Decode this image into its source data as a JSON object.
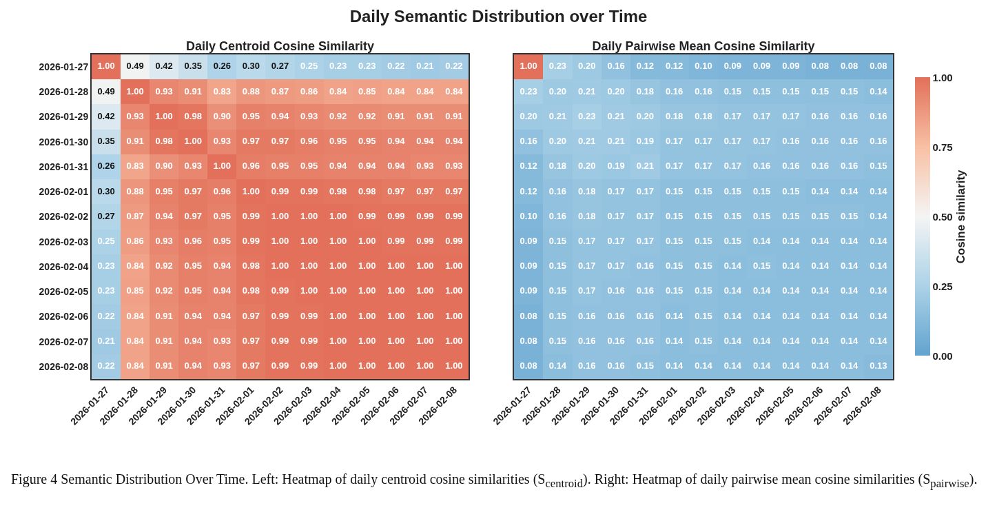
{
  "chart_data": [
    {
      "type": "heatmap",
      "title": "Daily Centroid Cosine Similarity",
      "annotations": [
        "Daily Semantic Distribution over Time",
        "Figure 4 Semantic Distribution Over Time. Left: Heatmap of daily centroid cosine similarities (S$_{centroid}$). Right: Heatmap of daily pairwise mean cosine similarities (S$_{pairwise}$)."
      ],
      "categories": [
        "2026-01-27",
        "2026-01-28",
        "2026-01-29",
        "2026-01-30",
        "2026-01-31",
        "2026-02-01",
        "2026-02-02",
        "2026-02-03",
        "2026-02-04",
        "2026-02-05",
        "2026-02-06",
        "2026-02-07",
        "2026-02-08"
      ],
      "y_categories": [
        "2026-01-27",
        "2026-01-28",
        "2026-01-29",
        "2026-01-30",
        "2026-01-31",
        "2026-02-01",
        "2026-02-02",
        "2026-02-03",
        "2026-02-04",
        "2026-02-05",
        "2026-02-06",
        "2026-02-07",
        "2026-02-08"
      ],
      "cells": [
        [
          1.0,
          0.49,
          0.42,
          0.35,
          0.26,
          0.3,
          0.27,
          0.25,
          0.23,
          0.23,
          0.22,
          0.21,
          0.22
        ],
        [
          0.49,
          1.0,
          0.93,
          0.91,
          0.83,
          0.88,
          0.87,
          0.86,
          0.84,
          0.85,
          0.84,
          0.84,
          0.84
        ],
        [
          0.42,
          0.93,
          1.0,
          0.98,
          0.9,
          0.95,
          0.94,
          0.93,
          0.92,
          0.92,
          0.91,
          0.91,
          0.91
        ],
        [
          0.35,
          0.91,
          0.98,
          1.0,
          0.93,
          0.97,
          0.97,
          0.96,
          0.95,
          0.95,
          0.94,
          0.94,
          0.94
        ],
        [
          0.26,
          0.83,
          0.9,
          0.93,
          1.0,
          0.96,
          0.95,
          0.95,
          0.94,
          0.94,
          0.94,
          0.93,
          0.93
        ],
        [
          0.3,
          0.88,
          0.95,
          0.97,
          0.96,
          1.0,
          0.99,
          0.99,
          0.98,
          0.98,
          0.97,
          0.97,
          0.97
        ],
        [
          0.27,
          0.87,
          0.94,
          0.97,
          0.95,
          0.99,
          1.0,
          1.0,
          1.0,
          0.99,
          0.99,
          0.99,
          0.99
        ],
        [
          0.25,
          0.86,
          0.93,
          0.96,
          0.95,
          0.99,
          1.0,
          1.0,
          1.0,
          1.0,
          0.99,
          0.99,
          0.99
        ],
        [
          0.23,
          0.84,
          0.92,
          0.95,
          0.94,
          0.98,
          1.0,
          1.0,
          1.0,
          1.0,
          1.0,
          1.0,
          1.0
        ],
        [
          0.23,
          0.85,
          0.92,
          0.95,
          0.94,
          0.98,
          0.99,
          1.0,
          1.0,
          1.0,
          1.0,
          1.0,
          1.0
        ],
        [
          0.22,
          0.84,
          0.91,
          0.94,
          0.94,
          0.97,
          0.99,
          0.99,
          1.0,
          1.0,
          1.0,
          1.0,
          1.0
        ],
        [
          0.21,
          0.84,
          0.91,
          0.94,
          0.93,
          0.97,
          0.99,
          0.99,
          1.0,
          1.0,
          1.0,
          1.0,
          1.0
        ],
        [
          0.22,
          0.84,
          0.91,
          0.94,
          0.93,
          0.97,
          0.99,
          0.99,
          1.0,
          1.0,
          1.0,
          1.0,
          1.0
        ]
      ],
      "cell_labels": [
        [
          "1.00",
          "0.49",
          "0.42",
          "0.35",
          "0.26",
          "0.30",
          "0.27",
          "0.25",
          "0.23",
          "0.23",
          "0.22",
          "0.21",
          "0.22"
        ],
        [
          "0.49",
          "1.00",
          "0.93",
          "0.91",
          "0.83",
          "0.88",
          "0.87",
          "0.86",
          "0.84",
          "0.85",
          "0.84",
          "0.84",
          "0.84"
        ],
        [
          "0.42",
          "0.93",
          "1.00",
          "0.98",
          "0.90",
          "0.95",
          "0.94",
          "0.93",
          "0.92",
          "0.92",
          "0.91",
          "0.91",
          "0.91"
        ],
        [
          "0.35",
          "0.91",
          "0.98",
          "1.00",
          "0.93",
          "0.97",
          "0.97",
          "0.96",
          "0.95",
          "0.95",
          "0.94",
          "0.94",
          "0.94"
        ],
        [
          "0.26",
          "0.83",
          "0.90",
          "0.93",
          "1.00",
          "0.96",
          "0.95",
          "0.95",
          "0.94",
          "0.94",
          "0.94",
          "0.93",
          "0.93"
        ],
        [
          "0.30",
          "0.88",
          "0.95",
          "0.97",
          "0.96",
          "1.00",
          "0.99",
          "0.99",
          "0.98",
          "0.98",
          "0.97",
          "0.97",
          "0.97"
        ],
        [
          "0.27",
          "0.87",
          "0.94",
          "0.97",
          "0.95",
          "0.99",
          "1.00",
          "1.00",
          "1.00",
          "0.99",
          "0.99",
          "0.99",
          "0.99"
        ],
        [
          "0.25",
          "0.86",
          "0.93",
          "0.96",
          "0.95",
          "0.99",
          "1.00",
          "1.00",
          "1.00",
          "1.00",
          "0.99",
          "0.99",
          "0.99"
        ],
        [
          "0.23",
          "0.84",
          "0.92",
          "0.95",
          "0.94",
          "0.98",
          "1.00",
          "1.00",
          "1.00",
          "1.00",
          "1.00",
          "1.00",
          "1.00"
        ],
        [
          "0.23",
          "0.85",
          "0.92",
          "0.95",
          "0.94",
          "0.98",
          "0.99",
          "1.00",
          "1.00",
          "1.00",
          "1.00",
          "1.00",
          "1.00"
        ],
        [
          "0.22",
          "0.84",
          "0.91",
          "0.94",
          "0.94",
          "0.97",
          "0.99",
          "0.99",
          "1.00",
          "1.00",
          "1.00",
          "1.00",
          "1.00"
        ],
        [
          "0.21",
          "0.84",
          "0.91",
          "0.94",
          "0.93",
          "0.97",
          "0.99",
          "0.99",
          "1.00",
          "1.00",
          "1.00",
          "1.00",
          "1.00"
        ],
        [
          "0.22",
          "0.84",
          "0.91",
          "0.94",
          "0.93",
          "0.97",
          "0.99",
          "0.99",
          "1.00",
          "1.00",
          "1.00",
          "1.00",
          "1.00"
        ]
      ]
    },
    {
      "type": "heatmap",
      "title": "Daily Pairwise Mean Cosine Similarity",
      "clabel": "Cosine similarity",
      "categories": [
        "2026-01-27",
        "2026-01-28",
        "2026-01-29",
        "2026-01-30",
        "2026-01-31",
        "2026-02-01",
        "2026-02-02",
        "2026-02-03",
        "2026-02-04",
        "2026-02-05",
        "2026-02-06",
        "2026-02-07",
        "2026-02-08"
      ],
      "y_categories": [
        "2026-01-27",
        "2026-01-28",
        "2026-01-29",
        "2026-01-30",
        "2026-01-31",
        "2026-02-01",
        "2026-02-02",
        "2026-02-03",
        "2026-02-04",
        "2026-02-05",
        "2026-02-06",
        "2026-02-07",
        "2026-02-08"
      ],
      "tick_labels": "x",
      "clim": [
        0,
        1
      ],
      "cticks": [
        {
          "value": 0,
          "label": "0.00"
        },
        {
          "value": 0.25,
          "label": "0.25"
        },
        {
          "value": 0.5,
          "label": "0.50"
        },
        {
          "value": 0.75,
          "label": "0.75"
        },
        {
          "value": 1,
          "label": "1.00"
        }
      ],
      "cells": [
        [
          1.0,
          0.23,
          0.2,
          0.16,
          0.12,
          0.12,
          0.1,
          0.09,
          0.09,
          0.09,
          0.08,
          0.08,
          0.08
        ],
        [
          0.23,
          0.2,
          0.21,
          0.2,
          0.18,
          0.16,
          0.16,
          0.15,
          0.15,
          0.15,
          0.15,
          0.15,
          0.14
        ],
        [
          0.2,
          0.21,
          0.23,
          0.21,
          0.2,
          0.18,
          0.18,
          0.17,
          0.17,
          0.17,
          0.16,
          0.16,
          0.16
        ],
        [
          0.16,
          0.2,
          0.21,
          0.21,
          0.19,
          0.17,
          0.17,
          0.17,
          0.17,
          0.16,
          0.16,
          0.16,
          0.16
        ],
        [
          0.12,
          0.18,
          0.2,
          0.19,
          0.21,
          0.17,
          0.17,
          0.17,
          0.16,
          0.16,
          0.16,
          0.16,
          0.15
        ],
        [
          0.12,
          0.16,
          0.18,
          0.17,
          0.17,
          0.15,
          0.15,
          0.15,
          0.15,
          0.15,
          0.14,
          0.14,
          0.14
        ],
        [
          0.1,
          0.16,
          0.18,
          0.17,
          0.17,
          0.15,
          0.15,
          0.15,
          0.15,
          0.15,
          0.15,
          0.15,
          0.14
        ],
        [
          0.09,
          0.15,
          0.17,
          0.17,
          0.17,
          0.15,
          0.15,
          0.15,
          0.14,
          0.14,
          0.14,
          0.14,
          0.14
        ],
        [
          0.09,
          0.15,
          0.17,
          0.17,
          0.16,
          0.15,
          0.15,
          0.14,
          0.15,
          0.14,
          0.14,
          0.14,
          0.14
        ],
        [
          0.09,
          0.15,
          0.17,
          0.16,
          0.16,
          0.15,
          0.15,
          0.14,
          0.14,
          0.14,
          0.14,
          0.14,
          0.14
        ],
        [
          0.08,
          0.15,
          0.16,
          0.16,
          0.16,
          0.14,
          0.15,
          0.14,
          0.14,
          0.14,
          0.14,
          0.14,
          0.14
        ],
        [
          0.08,
          0.15,
          0.16,
          0.16,
          0.16,
          0.14,
          0.15,
          0.14,
          0.14,
          0.14,
          0.14,
          0.14,
          0.14
        ],
        [
          0.08,
          0.14,
          0.16,
          0.16,
          0.15,
          0.14,
          0.14,
          0.14,
          0.14,
          0.14,
          0.14,
          0.14,
          0.13
        ]
      ],
      "cell_labels": [
        [
          "1.00",
          "0.23",
          "0.20",
          "0.16",
          "0.12",
          "0.12",
          "0.10",
          "0.09",
          "0.09",
          "0.09",
          "0.08",
          "0.08",
          "0.08"
        ],
        [
          "0.23",
          "0.20",
          "0.21",
          "0.20",
          "0.18",
          "0.16",
          "0.16",
          "0.15",
          "0.15",
          "0.15",
          "0.15",
          "0.15",
          "0.14"
        ],
        [
          "0.20",
          "0.21",
          "0.23",
          "0.21",
          "0.20",
          "0.18",
          "0.18",
          "0.17",
          "0.17",
          "0.17",
          "0.16",
          "0.16",
          "0.16"
        ],
        [
          "0.16",
          "0.20",
          "0.21",
          "0.21",
          "0.19",
          "0.17",
          "0.17",
          "0.17",
          "0.17",
          "0.16",
          "0.16",
          "0.16",
          "0.16"
        ],
        [
          "0.12",
          "0.18",
          "0.20",
          "0.19",
          "0.21",
          "0.17",
          "0.17",
          "0.17",
          "0.16",
          "0.16",
          "0.16",
          "0.16",
          "0.15"
        ],
        [
          "0.12",
          "0.16",
          "0.18",
          "0.17",
          "0.17",
          "0.15",
          "0.15",
          "0.15",
          "0.15",
          "0.15",
          "0.14",
          "0.14",
          "0.14"
        ],
        [
          "0.10",
          "0.16",
          "0.18",
          "0.17",
          "0.17",
          "0.15",
          "0.15",
          "0.15",
          "0.15",
          "0.15",
          "0.15",
          "0.15",
          "0.14"
        ],
        [
          "0.09",
          "0.15",
          "0.17",
          "0.17",
          "0.17",
          "0.15",
          "0.15",
          "0.15",
          "0.14",
          "0.14",
          "0.14",
          "0.14",
          "0.14"
        ],
        [
          "0.09",
          "0.15",
          "0.17",
          "0.17",
          "0.16",
          "0.15",
          "0.15",
          "0.14",
          "0.15",
          "0.14",
          "0.14",
          "0.14",
          "0.14"
        ],
        [
          "0.09",
          "0.15",
          "0.17",
          "0.16",
          "0.16",
          "0.15",
          "0.15",
          "0.14",
          "0.14",
          "0.14",
          "0.14",
          "0.14",
          "0.14"
        ],
        [
          "0.08",
          "0.15",
          "0.16",
          "0.16",
          "0.16",
          "0.14",
          "0.15",
          "0.14",
          "0.14",
          "0.14",
          "0.14",
          "0.14",
          "0.14"
        ],
        [
          "0.08",
          "0.15",
          "0.16",
          "0.16",
          "0.16",
          "0.14",
          "0.15",
          "0.14",
          "0.14",
          "0.14",
          "0.14",
          "0.14",
          "0.14"
        ],
        [
          "0.08",
          "0.14",
          "0.16",
          "0.16",
          "0.15",
          "0.14",
          "0.14",
          "0.14",
          "0.14",
          "0.14",
          "0.14",
          "0.14",
          "0.13"
        ]
      ]
    }
  ]
}
